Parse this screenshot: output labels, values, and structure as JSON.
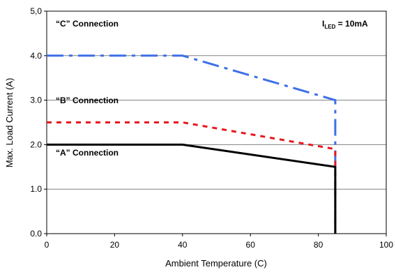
{
  "chart_data": {
    "type": "line",
    "xlabel": "Ambient Temperature (C)",
    "ylabel": "Max. Load Current (A)",
    "xlim": [
      0,
      100
    ],
    "ylim": [
      0,
      5
    ],
    "x_ticks": [
      "0",
      "20",
      "40",
      "60",
      "80",
      "100"
    ],
    "y_ticks": [
      "0.0",
      "1.0",
      "2.0",
      "3.0",
      "4.0",
      "5,0"
    ],
    "grid": true,
    "legend": "none",
    "annotation": {
      "main": "I",
      "sub": "LED",
      "rest": " = 10mA"
    },
    "series": [
      {
        "name": "“A” Connection",
        "color": "#000000",
        "dash": "solid",
        "x": [
          0,
          40,
          85,
          85
        ],
        "y": [
          2.0,
          2.0,
          1.5,
          0.0
        ]
      },
      {
        "name": "“B” Connection",
        "color": "#e8161e",
        "dash": "dash",
        "x": [
          0,
          40,
          85,
          85
        ],
        "y": [
          2.5,
          2.5,
          1.9,
          0.0
        ]
      },
      {
        "name": "“C” Connection",
        "color": "#3d6fe8",
        "dash": "dashdot",
        "x": [
          0,
          40,
          85,
          85
        ],
        "y": [
          4.0,
          4.0,
          3.0,
          0.0
        ]
      }
    ]
  }
}
